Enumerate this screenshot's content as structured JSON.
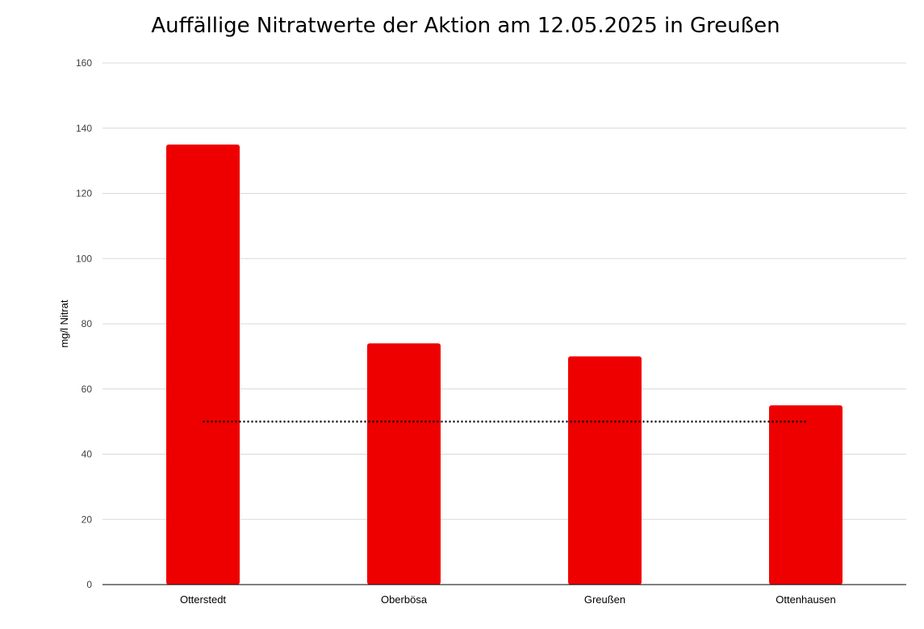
{
  "chart_data": {
    "type": "bar",
    "title": "Auffällige Nitratwerte der Aktion am 12.05.2025 in Greußen",
    "xlabel": "",
    "ylabel": "mg/l Nitrat",
    "categories": [
      "Otterstedt",
      "Oberbösa",
      "Greußen",
      "Ottenhausen"
    ],
    "values": [
      135,
      74,
      70,
      55
    ],
    "ylim": [
      0,
      160
    ],
    "yticks": [
      0,
      20,
      40,
      60,
      80,
      100,
      120,
      140,
      160
    ],
    "grid": true,
    "legend": "none",
    "reference_line": {
      "value": 50,
      "style": "dotted"
    },
    "colors": {
      "bar": "#ee0000",
      "grid": "#d9d9d9",
      "axis": "#000000",
      "reference_line": "#000000"
    }
  }
}
